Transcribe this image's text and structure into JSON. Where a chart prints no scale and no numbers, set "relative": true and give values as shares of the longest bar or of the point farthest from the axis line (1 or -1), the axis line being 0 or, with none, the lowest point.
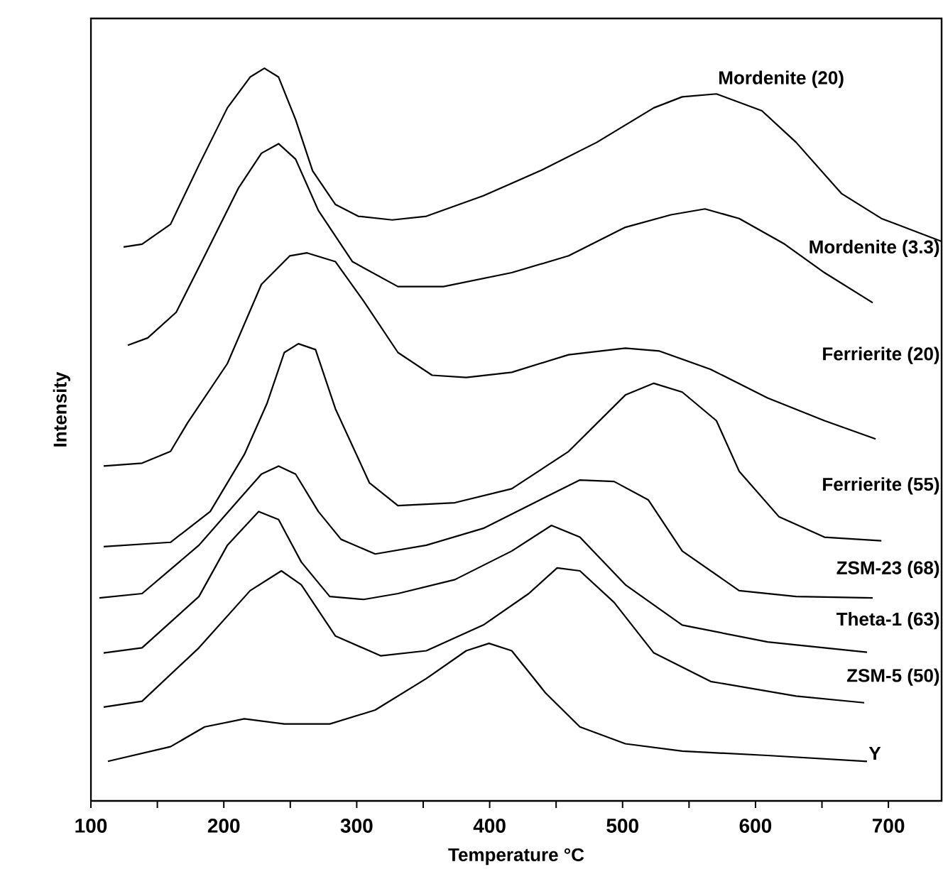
{
  "chart_data": {
    "type": "line",
    "relative": true,
    "xlabel": "Temperature °C",
    "ylabel": "Intensity",
    "xlim": [
      100,
      740
    ],
    "xticks": [
      100,
      {
        "value": 150,
        "label": null
      },
      200,
      {
        "value": 250,
        "label": null
      },
      300,
      {
        "value": 350,
        "label": null
      },
      400,
      {
        "value": 450,
        "label": null
      },
      500,
      {
        "value": 550,
        "label": null
      },
      600,
      {
        "value": 650,
        "label": null
      },
      700
    ],
    "marker": "none",
    "line_style": "solid",
    "series": [
      {
        "name": "Mordenite (20)",
        "color": "#000000",
        "x": [
          124.6,
          138.5,
          159.9,
          181.3,
          202.7,
          219.8,
          230.5,
          241.2,
          254.0,
          266.8,
          284.0,
          301.1,
          326.7,
          352.4,
          395.2,
          438.0,
          480.7,
          523.5,
          544.9,
          570.6,
          604.8,
          630.5,
          664.7,
          694.7,
          739.6
        ],
        "values": [
          0.756,
          0.76,
          0.787,
          0.868,
          0.946,
          0.988,
          1.0,
          0.988,
          0.93,
          0.86,
          0.814,
          0.798,
          0.793,
          0.798,
          0.826,
          0.86,
          0.899,
          0.946,
          0.961,
          0.965,
          0.942,
          0.899,
          0.829,
          0.795,
          0.764
        ]
      },
      {
        "name": "Mordenite (3.3)",
        "color": "#000000",
        "x": [
          127.8,
          142.8,
          164.2,
          185.6,
          211.2,
          228.3,
          241.2,
          254.0,
          271.1,
          296.8,
          331.0,
          365.2,
          416.6,
          459.4,
          502.1,
          536.4,
          562.0,
          587.7,
          621.9,
          651.9,
          688.2
        ],
        "values": [
          0.622,
          0.632,
          0.667,
          0.744,
          0.837,
          0.884,
          0.897,
          0.876,
          0.806,
          0.736,
          0.702,
          0.702,
          0.721,
          0.744,
          0.783,
          0.8,
          0.808,
          0.795,
          0.76,
          0.721,
          0.68
        ]
      },
      {
        "name": "Ferrierite (20)",
        "color": "#000000",
        "x": [
          109.6,
          138.5,
          159.9,
          172.7,
          202.7,
          228.3,
          249.7,
          262.6,
          284.0,
          305.3,
          331.0,
          356.7,
          382.4,
          416.6,
          459.4,
          502.1,
          527.8,
          566.3,
          609.1,
          651.9,
          690.4
        ],
        "values": [
          0.457,
          0.461,
          0.477,
          0.516,
          0.597,
          0.705,
          0.744,
          0.748,
          0.736,
          0.682,
          0.612,
          0.581,
          0.578,
          0.585,
          0.609,
          0.618,
          0.614,
          0.589,
          0.55,
          0.519,
          0.494
        ]
      },
      {
        "name": "Ferrierite (55)",
        "color": "#000000",
        "x": [
          109.6,
          159.9,
          189.8,
          215.5,
          232.6,
          245.5,
          256.1,
          269.0,
          284.0,
          309.6,
          331.0,
          373.8,
          416.6,
          459.4,
          502.1,
          523.5,
          544.9,
          570.6,
          587.7,
          617.6,
          651.9,
          694.7
        ],
        "values": [
          0.347,
          0.353,
          0.395,
          0.473,
          0.543,
          0.612,
          0.624,
          0.616,
          0.535,
          0.434,
          0.403,
          0.407,
          0.426,
          0.477,
          0.554,
          0.57,
          0.558,
          0.519,
          0.45,
          0.388,
          0.36,
          0.355
        ]
      },
      {
        "name": "ZSM-23 (68)",
        "color": "#000000",
        "x": [
          106.4,
          138.5,
          181.3,
          211.2,
          228.3,
          241.2,
          254.0,
          271.1,
          288.2,
          313.9,
          352.4,
          395.2,
          438.0,
          467.9,
          493.6,
          519.3,
          544.9,
          587.7,
          630.5,
          688.2
        ],
        "values": [
          0.277,
          0.283,
          0.349,
          0.411,
          0.446,
          0.457,
          0.446,
          0.395,
          0.357,
          0.337,
          0.349,
          0.372,
          0.411,
          0.438,
          0.436,
          0.411,
          0.341,
          0.287,
          0.279,
          0.277
        ]
      },
      {
        "name": "Theta-1 (63)",
        "color": "#000000",
        "x": [
          109.6,
          138.5,
          181.3,
          202.7,
          226.2,
          241.2,
          258.3,
          279.7,
          305.3,
          331.0,
          373.8,
          416.6,
          446.5,
          467.9,
          502.1,
          544.9,
          609.1,
          683.9
        ],
        "values": [
          0.202,
          0.209,
          0.279,
          0.349,
          0.395,
          0.384,
          0.326,
          0.279,
          0.275,
          0.283,
          0.302,
          0.341,
          0.376,
          0.36,
          0.295,
          0.24,
          0.217,
          0.203
        ]
      },
      {
        "name": "ZSM-5 (50)",
        "color": "#000000",
        "x": [
          109.6,
          138.5,
          181.3,
          219.8,
          243.3,
          258.3,
          284.0,
          318.2,
          352.4,
          395.2,
          429.4,
          450.8,
          467.9,
          493.6,
          523.5,
          566.3,
          630.5,
          681.8
        ],
        "values": [
          0.128,
          0.136,
          0.209,
          0.287,
          0.314,
          0.295,
          0.225,
          0.198,
          0.205,
          0.24,
          0.283,
          0.318,
          0.314,
          0.271,
          0.202,
          0.163,
          0.143,
          0.134
        ]
      },
      {
        "name": "Y",
        "color": "#000000",
        "x": [
          112.8,
          159.9,
          185.6,
          215.5,
          245.5,
          279.7,
          313.9,
          352.4,
          382.4,
          399.5,
          416.6,
          442.2,
          467.9,
          502.1,
          544.9,
          609.1,
          683.9
        ],
        "values": [
          0.054,
          0.074,
          0.101,
          0.112,
          0.105,
          0.105,
          0.124,
          0.167,
          0.205,
          0.215,
          0.205,
          0.147,
          0.101,
          0.078,
          0.068,
          0.062,
          0.054
        ]
      }
    ]
  }
}
